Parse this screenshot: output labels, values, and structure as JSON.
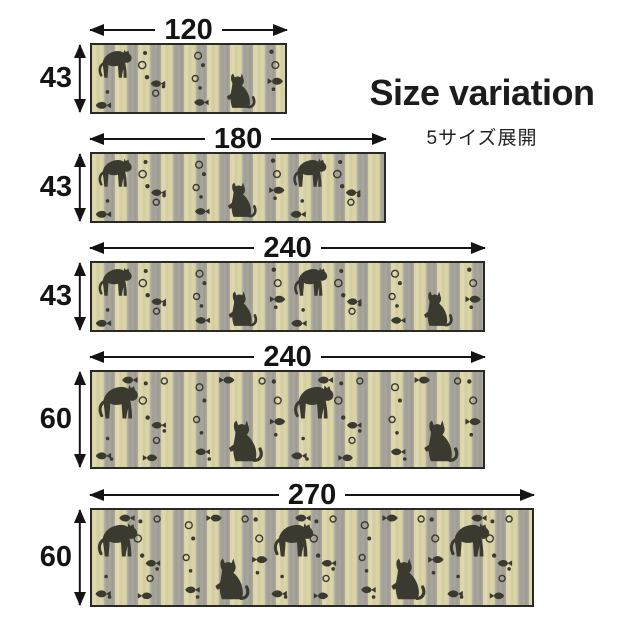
{
  "title": "Size variation",
  "subtitle": "5サイズ展開",
  "colors": {
    "arrow": "#141414",
    "text": "#1c1c1c",
    "motif": "#3a3a30",
    "stripe_cream": "#d9d3a6",
    "stripe_gray": "#a5a399",
    "mat_border": "#2a2a24",
    "background": "#ffffff"
  },
  "sizes": [
    {
      "width_label": "120",
      "height_label": "43",
      "width_value": 120,
      "height_value": 43,
      "cat_motifs": 2
    },
    {
      "width_label": "180",
      "height_label": "43",
      "width_value": 180,
      "height_value": 43,
      "cat_motifs": 3
    },
    {
      "width_label": "240",
      "height_label": "43",
      "width_value": 240,
      "height_value": 43,
      "cat_motifs": 4
    },
    {
      "width_label": "240",
      "height_label": "60",
      "width_value": 240,
      "height_value": 60,
      "cat_motifs": 4
    },
    {
      "width_label": "270",
      "height_label": "60",
      "width_value": 270,
      "height_value": 60,
      "cat_motifs": 5
    }
  ]
}
